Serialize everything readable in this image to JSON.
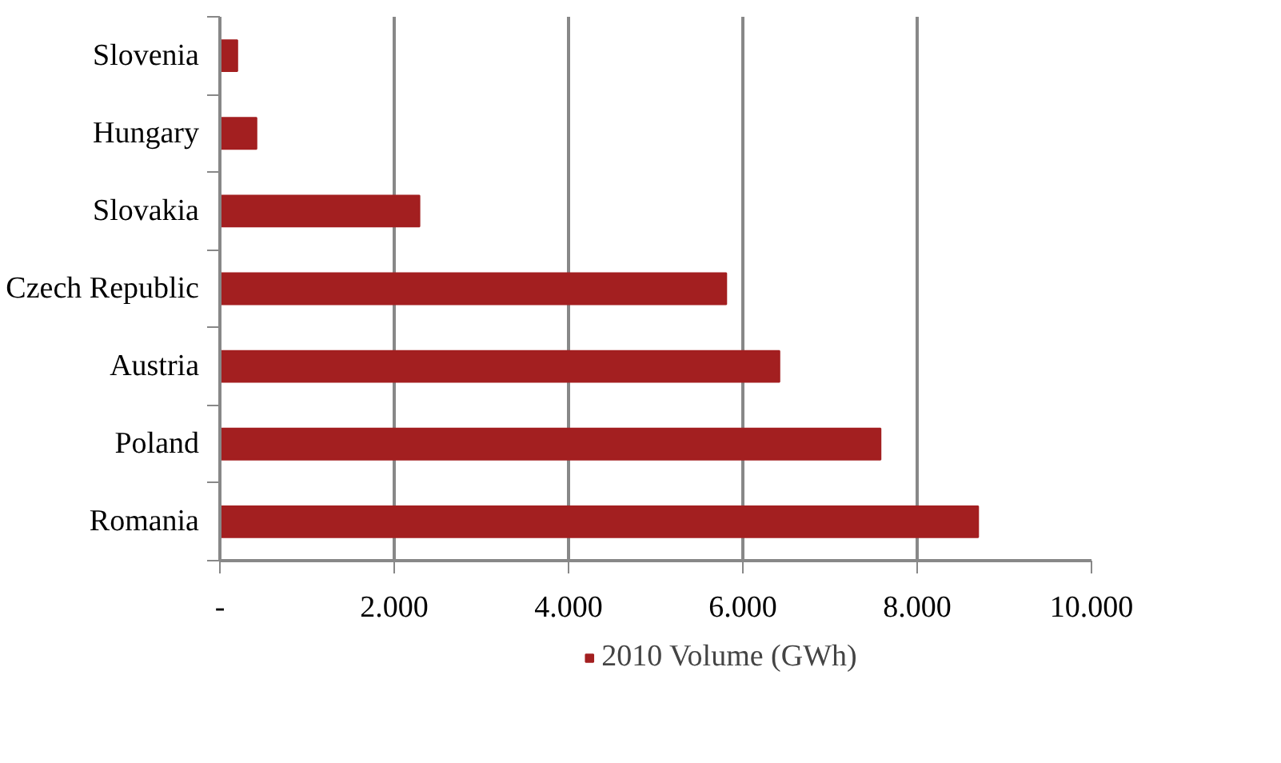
{
  "chart_data": {
    "type": "bar",
    "orientation": "horizontal",
    "categories": [
      "Slovenia",
      "Hungary",
      "Slovakia",
      "Czech Republic",
      "Austria",
      "Poland",
      "Romania"
    ],
    "series": [
      {
        "name": "2010 Volume (GWh)",
        "color": "#a31f20",
        "values": [
          200,
          420,
          2290,
          5810,
          6420,
          7580,
          8700
        ]
      }
    ],
    "xlim": [
      0,
      10000
    ],
    "xticks": [
      {
        "value": 0,
        "label": "-"
      },
      {
        "value": 2000,
        "label": "2.000"
      },
      {
        "value": 4000,
        "label": "4.000"
      },
      {
        "value": 6000,
        "label": "6.000"
      },
      {
        "value": 8000,
        "label": "8.000"
      },
      {
        "value": 10000,
        "label": "10.000"
      }
    ],
    "grid": "x",
    "legend": "bottom"
  }
}
